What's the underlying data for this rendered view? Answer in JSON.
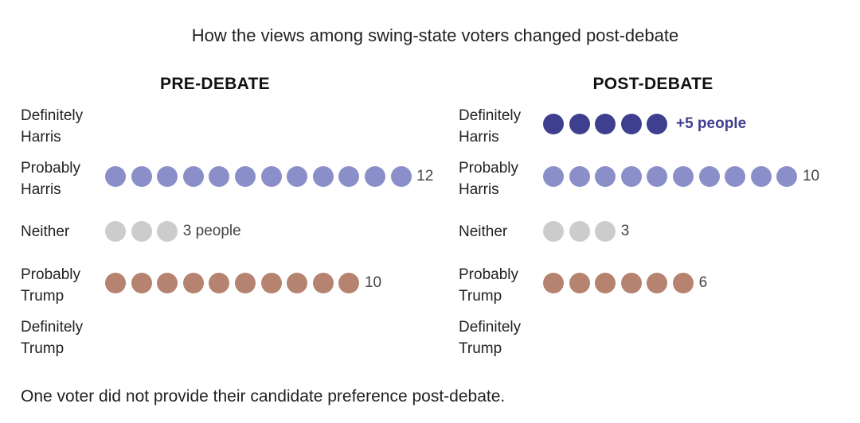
{
  "title": "How the views among swing-state voters changed post-debate",
  "footnote": "One voter did not provide their candidate preference post-debate.",
  "chart_data": [
    {
      "type": "dot-plot",
      "title": "PRE-DEBATE",
      "categories": [
        "Definitely Harris",
        "Probably Harris",
        "Neither",
        "Probably Trump",
        "Definitely Trump"
      ],
      "values": [
        0,
        12,
        3,
        10,
        0
      ],
      "category_lines": [
        [
          "Definitely",
          "Harris"
        ],
        [
          "Probably",
          "Harris"
        ],
        [
          "Neither"
        ],
        [
          "Probably",
          "Trump"
        ],
        [
          "Definitely",
          "Trump"
        ]
      ],
      "value_labels": [
        "",
        "12",
        "3 people",
        "10",
        ""
      ],
      "colors": [
        "#3f3f8f",
        "#8a8fc9",
        "#cccccc",
        "#b5836f",
        "#b5836f"
      ]
    },
    {
      "type": "dot-plot",
      "title": "POST-DEBATE",
      "categories": [
        "Definitely Harris",
        "Probably Harris",
        "Neither",
        "Probably Trump",
        "Definitely Trump"
      ],
      "values": [
        5,
        10,
        3,
        6,
        0
      ],
      "category_lines": [
        [
          "Definitely",
          "Harris"
        ],
        [
          "Probably",
          "Harris"
        ],
        [
          "Neither"
        ],
        [
          "Probably",
          "Trump"
        ],
        [
          "Definitely",
          "Trump"
        ]
      ],
      "value_labels": [
        "+5 people",
        "10",
        "3",
        "6",
        ""
      ],
      "colors": [
        "#3f3f8f",
        "#8a8fc9",
        "#cccccc",
        "#b5836f",
        "#b5836f"
      ]
    }
  ]
}
